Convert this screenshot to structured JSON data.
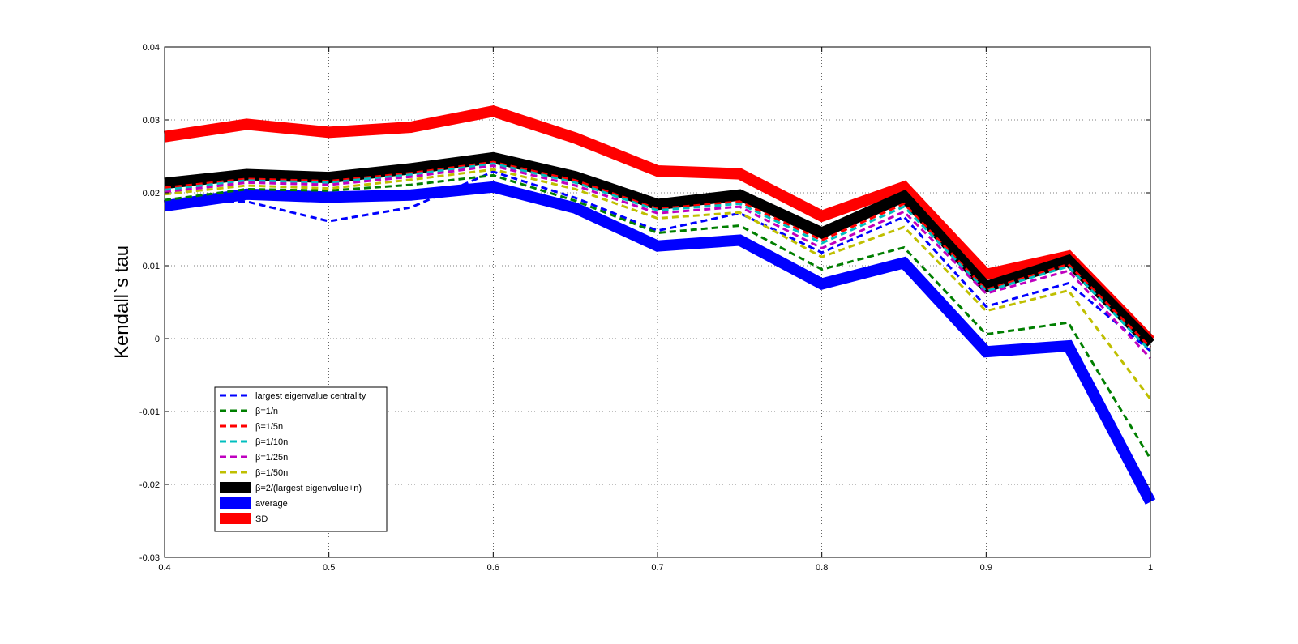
{
  "chart_data": {
    "type": "line",
    "title": "",
    "xlabel": "",
    "ylabel": "Kendall`s tau",
    "xlim": [
      0.4,
      1
    ],
    "ylim": [
      -0.03,
      0.04
    ],
    "xticks": [
      0.4,
      0.5,
      0.6,
      0.7,
      0.8,
      0.9,
      1
    ],
    "xtick_labels": [
      "0.4",
      "0.5",
      "0.6",
      "0.7",
      "0.8",
      "0.9",
      "1"
    ],
    "yticks": [
      -0.03,
      -0.02,
      -0.01,
      0,
      0.01,
      0.02,
      0.03,
      0.04
    ],
    "ytick_labels": [
      "-0.03",
      "-0.02",
      "-0.01",
      "0",
      "0.01",
      "0.02",
      "0.03",
      "0.04"
    ],
    "grid": true,
    "legend_position": "lower-left",
    "x": [
      0.4,
      0.45,
      0.5,
      0.55,
      0.6,
      0.65,
      0.7,
      0.75,
      0.8,
      0.85,
      0.9,
      0.95,
      1.0
    ],
    "series": [
      {
        "name": "SD",
        "style": "solid",
        "width": "thick",
        "color": "#ff0000",
        "values": [
          0.0277,
          0.0294,
          0.0283,
          0.029,
          0.0312,
          0.0275,
          0.023,
          0.0226,
          0.0168,
          0.0208,
          0.0088,
          0.0113,
          -0.0003
        ]
      },
      {
        "name": "β=2/(largest eigenvalue+n)",
        "style": "solid",
        "width": "thick",
        "color": "#000000",
        "values": [
          0.0213,
          0.0225,
          0.0221,
          0.0233,
          0.0248,
          0.0222,
          0.0184,
          0.0197,
          0.0145,
          0.0195,
          0.0071,
          0.0107,
          -0.0007
        ]
      },
      {
        "name": "average",
        "style": "solid",
        "width": "thick",
        "color": "#0000ff",
        "values": [
          0.0182,
          0.0198,
          0.0194,
          0.0197,
          0.0208,
          0.0179,
          0.0127,
          0.0135,
          0.0075,
          0.0104,
          -0.0018,
          -0.001,
          -0.0224
        ]
      },
      {
        "name": "largest eigenvalue centrality",
        "style": "dashed",
        "width": "thin",
        "color": "#0000ff",
        "values": [
          0.0188,
          0.0188,
          0.0161,
          0.018,
          0.0229,
          0.0193,
          0.0148,
          0.0172,
          0.0118,
          0.0167,
          0.0044,
          0.0076,
          -0.0017
        ]
      },
      {
        "name": "β=1/n",
        "style": "dashed",
        "width": "thin",
        "color": "#007f00",
        "values": [
          0.019,
          0.0205,
          0.0203,
          0.0211,
          0.0224,
          0.0189,
          0.0145,
          0.0155,
          0.0095,
          0.0125,
          0.0006,
          0.0022,
          -0.0165
        ]
      },
      {
        "name": "β=1/5n",
        "style": "dashed",
        "width": "thin",
        "color": "#ff0000",
        "values": [
          0.0207,
          0.0219,
          0.0216,
          0.0227,
          0.0242,
          0.0217,
          0.0178,
          0.0188,
          0.0135,
          0.0185,
          0.0067,
          0.0102,
          -0.0012
        ]
      },
      {
        "name": "β=1/10n",
        "style": "dashed",
        "width": "thin",
        "color": "#00bfbf",
        "values": [
          0.0204,
          0.0217,
          0.0214,
          0.0225,
          0.024,
          0.0214,
          0.0176,
          0.0185,
          0.0131,
          0.0181,
          0.0065,
          0.0099,
          -0.0017
        ]
      },
      {
        "name": "β=1/25n",
        "style": "dashed",
        "width": "thin",
        "color": "#bf00bf",
        "values": [
          0.0201,
          0.0214,
          0.0211,
          0.0222,
          0.0237,
          0.021,
          0.0172,
          0.0181,
          0.0124,
          0.0174,
          0.0062,
          0.0093,
          -0.0027
        ]
      },
      {
        "name": "β=1/50n",
        "style": "dashed",
        "width": "thin",
        "color": "#bfbf00",
        "values": [
          0.0198,
          0.021,
          0.0206,
          0.0218,
          0.0232,
          0.0205,
          0.0165,
          0.0173,
          0.0112,
          0.0153,
          0.0038,
          0.0066,
          -0.0083
        ]
      }
    ],
    "legend_order": [
      "largest eigenvalue centrality",
      "β=1/n",
      "β=1/5n",
      "β=1/10n",
      "β=1/25n",
      "β=1/50n",
      "β=2/(largest eigenvalue+n)",
      "average",
      "SD"
    ]
  }
}
